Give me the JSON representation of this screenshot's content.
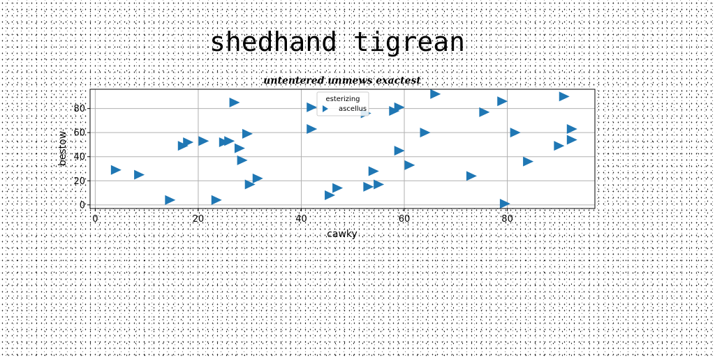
{
  "figure_title": "shedhand tigrean",
  "chart_data": {
    "type": "scatter",
    "title": "untentered unmews exactest",
    "xlabel": "cawky",
    "ylabel": "bestow",
    "xlim": [
      -1,
      97
    ],
    "ylim": [
      -3,
      96
    ],
    "xticks": [
      0,
      20,
      40,
      60,
      80
    ],
    "yticks": [
      0,
      20,
      40,
      60,
      80
    ],
    "grid": true,
    "legend": {
      "title": "esterizing",
      "placement": "top-center"
    },
    "marker": "triangle-right",
    "color": "#1f77b4",
    "series": [
      {
        "name": "ascellus",
        "x": [
          4,
          8.5,
          14.5,
          17,
          18,
          21,
          23.5,
          25,
          26,
          27,
          28,
          28.5,
          29.5,
          30,
          31.5,
          42,
          42,
          45.5,
          47,
          52.5,
          53,
          54,
          55,
          58,
          59,
          59,
          61,
          64,
          66,
          73,
          75.5,
          79,
          79.5,
          81.5,
          84,
          90,
          91,
          92.5,
          92.5
        ],
        "y": [
          29,
          25,
          4,
          49,
          52,
          53,
          4,
          52,
          53,
          85,
          47,
          37,
          59,
          17,
          22,
          81,
          63,
          8,
          14,
          76,
          15,
          28,
          17,
          78,
          81,
          45,
          33,
          60,
          92,
          24,
          77,
          86,
          1,
          60,
          36,
          49,
          90,
          54,
          63
        ]
      }
    ]
  }
}
